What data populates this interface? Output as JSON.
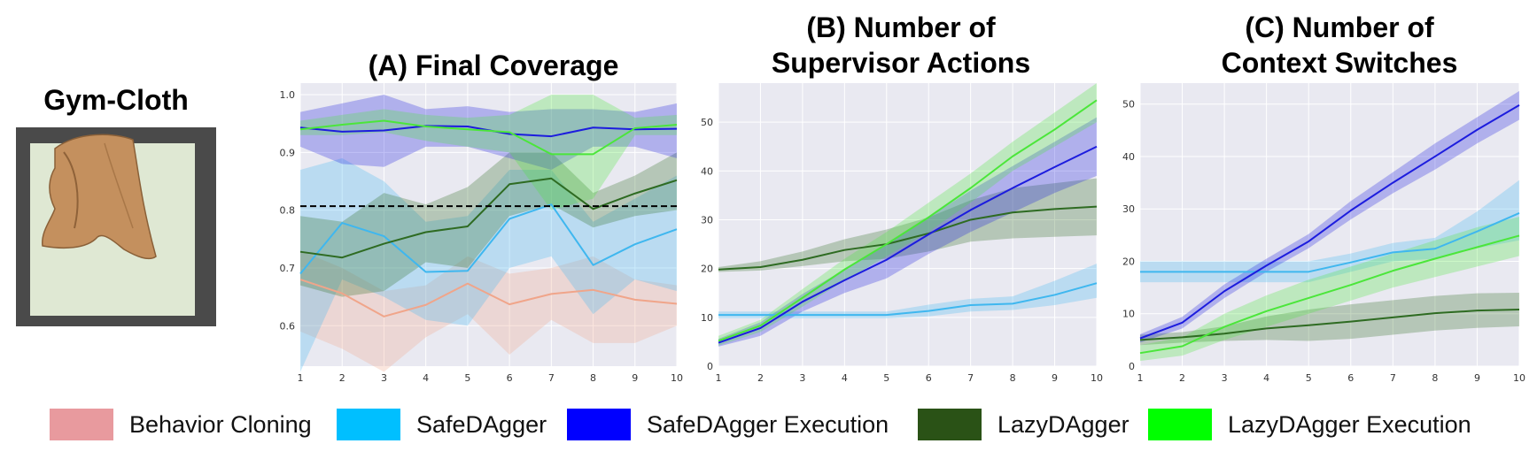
{
  "image_panel": {
    "title": "Gym-Cloth",
    "colors": {
      "frame": "#4a4a4a",
      "plane": "#dfe8d3",
      "cloth": "#c4905e"
    }
  },
  "legend": [
    {
      "label": "Behavior Cloning",
      "color": "#e89a9e"
    },
    {
      "label": "SafeDAgger",
      "color": "#00bfff"
    },
    {
      "label": "SafeDAgger Execution",
      "color": "#0000ff"
    },
    {
      "label": "LazyDAgger",
      "color": "#2a5216"
    },
    {
      "label": "LazyDAgger Execution",
      "color": "#00ff00"
    }
  ],
  "colors": {
    "plot_bg": "#e9e9f1",
    "grid": "#ffffff",
    "bc": "#f0a58a",
    "safe": "#3fb7ef",
    "safe_exec": "#1c1cde",
    "lazy": "#2e6b22",
    "lazy_exec": "#4be63a"
  },
  "chart_data": [
    {
      "type": "line",
      "title_lines": [
        "(A) Final Coverage"
      ],
      "x": [
        1,
        2,
        3,
        4,
        5,
        6,
        7,
        8,
        9,
        10
      ],
      "ylim": [
        0.53,
        1.02
      ],
      "yticks": [
        0.6,
        0.7,
        0.8,
        0.9,
        1.0
      ],
      "ytick_labels": [
        "0.6",
        "0.7",
        "0.8",
        "0.9",
        "1.0"
      ],
      "xticks": [
        "1",
        "2",
        "3",
        "4",
        "5",
        "6",
        "7",
        "8",
        "9",
        "10"
      ],
      "reference_line": 0.807,
      "series": [
        {
          "key": "bc",
          "name": "Behavior Cloning",
          "values": [
            0.68,
            0.656,
            0.616,
            0.636,
            0.673,
            0.637,
            0.655,
            0.662,
            0.645,
            0.638
          ],
          "lower": [
            0.59,
            0.56,
            0.52,
            0.58,
            0.62,
            0.55,
            0.61,
            0.57,
            0.57,
            0.6
          ],
          "upper": [
            0.73,
            0.7,
            0.66,
            0.67,
            0.72,
            0.69,
            0.7,
            0.72,
            0.68,
            0.67
          ]
        },
        {
          "key": "safe",
          "name": "SafeDAgger",
          "values": [
            0.69,
            0.778,
            0.755,
            0.693,
            0.695,
            0.785,
            0.81,
            0.705,
            0.741,
            0.767
          ],
          "lower": [
            0.52,
            0.68,
            0.65,
            0.61,
            0.6,
            0.7,
            0.72,
            0.62,
            0.68,
            0.66
          ],
          "upper": [
            0.87,
            0.89,
            0.85,
            0.78,
            0.79,
            0.87,
            0.87,
            0.78,
            0.82,
            0.86
          ]
        },
        {
          "key": "lazy",
          "name": "LazyDAgger",
          "values": [
            0.728,
            0.718,
            0.742,
            0.762,
            0.772,
            0.845,
            0.855,
            0.802,
            0.829,
            0.852
          ],
          "lower": [
            0.67,
            0.65,
            0.66,
            0.71,
            0.7,
            0.79,
            0.81,
            0.77,
            0.79,
            0.8
          ],
          "upper": [
            0.79,
            0.78,
            0.83,
            0.81,
            0.84,
            0.9,
            0.9,
            0.83,
            0.86,
            0.9
          ]
        },
        {
          "key": "safe_exec",
          "name": "SafeDAgger Execution",
          "values": [
            0.943,
            0.936,
            0.938,
            0.946,
            0.945,
            0.932,
            0.928,
            0.943,
            0.94,
            0.941
          ],
          "lower": [
            0.91,
            0.88,
            0.875,
            0.91,
            0.91,
            0.89,
            0.87,
            0.91,
            0.91,
            0.89
          ],
          "upper": [
            0.97,
            0.985,
            1.0,
            0.975,
            0.98,
            0.97,
            0.975,
            0.975,
            0.97,
            0.985
          ]
        },
        {
          "key": "lazy_exec",
          "name": "LazyDAgger Execution",
          "values": [
            0.94,
            0.948,
            0.955,
            0.945,
            0.94,
            0.935,
            0.897,
            0.897,
            0.942,
            0.948
          ],
          "lower": [
            0.93,
            0.93,
            0.935,
            0.92,
            0.91,
            0.9,
            0.8,
            0.82,
            0.93,
            0.93
          ],
          "upper": [
            0.955,
            0.965,
            0.975,
            0.965,
            0.96,
            0.965,
            1.0,
            1.0,
            0.96,
            0.965
          ]
        }
      ]
    },
    {
      "type": "line",
      "title_lines": [
        "(B) Number of",
        "Supervisor Actions"
      ],
      "x": [
        1,
        2,
        3,
        4,
        5,
        6,
        7,
        8,
        9,
        10
      ],
      "ylim": [
        0,
        58
      ],
      "yticks": [
        0,
        10,
        20,
        30,
        40,
        50
      ],
      "ytick_labels": [
        "0",
        "10",
        "20",
        "30",
        "40",
        "50"
      ],
      "xticks": [
        "1",
        "2",
        "3",
        "4",
        "5",
        "6",
        "7",
        "8",
        "9",
        "10"
      ],
      "series": [
        {
          "key": "safe",
          "name": "SafeDAgger",
          "values": [
            10.5,
            10.5,
            10.5,
            10.5,
            10.5,
            11.3,
            12.5,
            12.8,
            14.6,
            17.0
          ],
          "lower": [
            9.8,
            9.8,
            9.8,
            9.8,
            9.8,
            10.2,
            11.2,
            11.5,
            12.5,
            14.0
          ],
          "upper": [
            11.2,
            11.2,
            11.2,
            11.2,
            11.2,
            12.6,
            13.8,
            14.3,
            17.5,
            21.0
          ]
        },
        {
          "key": "lazy",
          "name": "LazyDAgger",
          "values": [
            19.8,
            20.3,
            21.8,
            23.8,
            25.0,
            27.2,
            30.0,
            31.5,
            32.2,
            32.7
          ],
          "lower": [
            19.3,
            19.6,
            20.5,
            21.5,
            22.0,
            23.5,
            25.5,
            26.2,
            26.5,
            26.8
          ],
          "upper": [
            20.3,
            21.5,
            23.5,
            26.0,
            28.0,
            30.5,
            34.0,
            36.5,
            37.5,
            38.5
          ]
        },
        {
          "key": "safe_exec",
          "name": "SafeDAgger Execution",
          "values": [
            4.8,
            7.8,
            13.2,
            17.6,
            21.8,
            27.0,
            32.0,
            36.5,
            40.8,
            45.0
          ],
          "lower": [
            4.0,
            6.2,
            11.2,
            15.0,
            18.0,
            23.0,
            27.5,
            31.5,
            35.5,
            39.0
          ],
          "upper": [
            5.6,
            9.0,
            14.8,
            19.8,
            24.8,
            30.5,
            36.0,
            41.0,
            46.0,
            51.0
          ]
        },
        {
          "key": "lazy_exec",
          "name": "LazyDAgger Execution",
          "values": [
            5.2,
            8.3,
            14.0,
            19.8,
            25.0,
            30.5,
            36.5,
            43.0,
            48.5,
            54.5
          ],
          "lower": [
            4.2,
            7.0,
            12.2,
            17.5,
            22.5,
            27.5,
            33.5,
            40.0,
            45.0,
            50.0
          ],
          "upper": [
            6.2,
            9.5,
            15.8,
            22.0,
            27.5,
            33.5,
            39.5,
            46.0,
            52.0,
            58.0
          ]
        }
      ]
    },
    {
      "type": "line",
      "title_lines": [
        "(C) Number of",
        "Context Switches"
      ],
      "x": [
        1,
        2,
        3,
        4,
        5,
        6,
        7,
        8,
        9,
        10
      ],
      "ylim": [
        0,
        54
      ],
      "yticks": [
        0,
        10,
        20,
        30,
        40,
        50
      ],
      "ytick_labels": [
        "0",
        "10",
        "20",
        "30",
        "40",
        "50"
      ],
      "xticks": [
        "1",
        "2",
        "3",
        "4",
        "5",
        "6",
        "7",
        "8",
        "9",
        "10"
      ],
      "series": [
        {
          "key": "lazy",
          "name": "LazyDAgger",
          "values": [
            5.0,
            5.5,
            6.2,
            7.2,
            7.8,
            8.5,
            9.3,
            10.1,
            10.6,
            10.8
          ],
          "lower": [
            4.0,
            4.5,
            4.8,
            5.0,
            4.8,
            5.2,
            6.0,
            6.8,
            7.3,
            7.6
          ],
          "upper": [
            6.0,
            6.5,
            7.6,
            9.5,
            10.8,
            11.8,
            12.6,
            13.4,
            13.9,
            14.0
          ]
        },
        {
          "key": "safe",
          "name": "SafeDAgger",
          "values": [
            18.0,
            18.0,
            18.0,
            18.0,
            18.0,
            19.8,
            21.7,
            22.4,
            25.7,
            29.2
          ],
          "lower": [
            16.0,
            16.0,
            16.0,
            16.0,
            16.0,
            18.0,
            20.0,
            20.5,
            22.5,
            24.0
          ],
          "upper": [
            20.0,
            20.0,
            20.0,
            20.0,
            20.0,
            21.5,
            23.5,
            24.5,
            29.5,
            35.5
          ]
        },
        {
          "key": "lazy_exec",
          "name": "LazyDAgger Execution",
          "values": [
            2.5,
            3.8,
            7.5,
            10.5,
            13.0,
            15.5,
            18.2,
            20.5,
            22.7,
            24.9
          ],
          "lower": [
            1.0,
            2.0,
            5.0,
            7.5,
            10.0,
            12.5,
            15.0,
            17.0,
            19.0,
            21.0
          ],
          "upper": [
            4.0,
            5.5,
            10.0,
            13.5,
            16.5,
            19.0,
            21.5,
            24.0,
            26.5,
            28.5
          ]
        },
        {
          "key": "safe_exec",
          "name": "SafeDAgger Execution",
          "values": [
            5.3,
            8.3,
            14.3,
            19.2,
            23.8,
            29.7,
            35.0,
            40.0,
            45.1,
            49.8
          ],
          "lower": [
            4.5,
            7.2,
            13.0,
            18.0,
            22.5,
            28.0,
            33.0,
            37.5,
            42.5,
            47.0
          ],
          "upper": [
            6.1,
            9.4,
            15.6,
            20.5,
            25.2,
            31.5,
            37.0,
            42.5,
            47.5,
            52.5
          ]
        }
      ]
    }
  ]
}
